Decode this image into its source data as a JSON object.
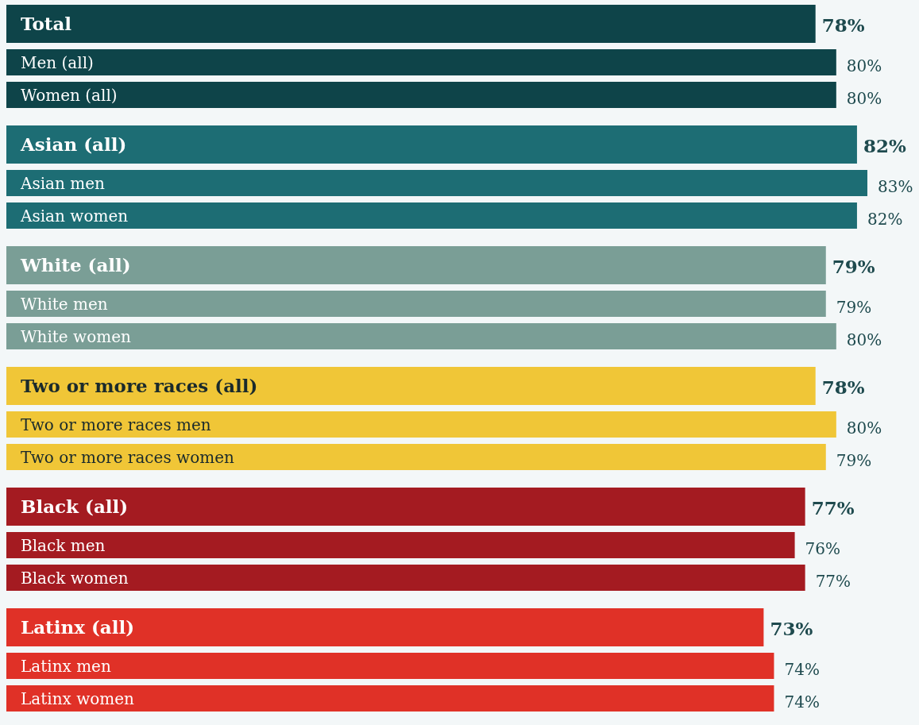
{
  "chart_data": {
    "type": "bar",
    "orientation": "horizontal",
    "categories": [
      "Total",
      "Men (all)",
      "Women (all)",
      "Asian (all)",
      "Asian men",
      "Asian women",
      "White (all)",
      "White men",
      "White women",
      "Two or more races (all)",
      "Two or more races men",
      "Two or more races women",
      "Black (all)",
      "Black men",
      "Black women",
      "Latinx (all)",
      "Latinx men",
      "Latinx women"
    ],
    "values": [
      78,
      80,
      80,
      82,
      83,
      82,
      79,
      79,
      80,
      78,
      80,
      79,
      77,
      76,
      77,
      73,
      74,
      74
    ],
    "value_labels": [
      "78%",
      "80%",
      "80%",
      "82%",
      "83%",
      "82%",
      "79%",
      "79%",
      "80%",
      "78%",
      "80%",
      "79%",
      "77%",
      "76%",
      "77%",
      "73%",
      "74%",
      "74%"
    ],
    "colors": [
      "#0e4449",
      "#0e4449",
      "#0e4449",
      "#1d6d74",
      "#1d6d74",
      "#1d6d74",
      "#7a9e96",
      "#7a9e96",
      "#7a9e96",
      "#f0c637",
      "#f0c637",
      "#f0c637",
      "#a41b21",
      "#a41b21",
      "#a41b21",
      "#e03127",
      "#e03127",
      "#e03127"
    ]
  }
}
